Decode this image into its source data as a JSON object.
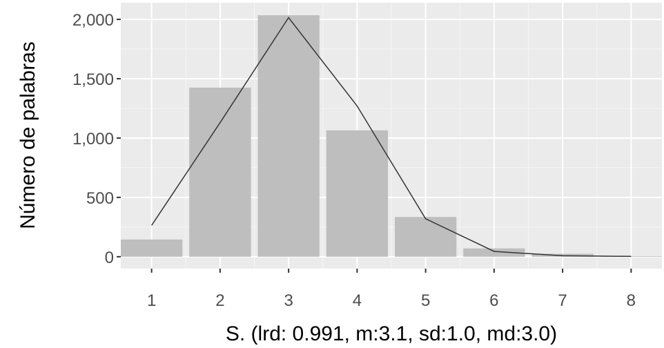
{
  "chart_data": {
    "type": "bar",
    "title": "",
    "xlabel": "S. (lrd: 0.991, m:3.1, sd:1.0, md:3.0)",
    "ylabel": "Número de palabras",
    "categories": [
      "1",
      "2",
      "3",
      "4",
      "5",
      "6",
      "7",
      "8"
    ],
    "x": [
      1,
      2,
      3,
      4,
      5,
      6,
      7,
      8
    ],
    "values": [
      145,
      1425,
      2035,
      1065,
      335,
      70,
      25,
      5
    ],
    "line": {
      "x": [
        1,
        2,
        3,
        4,
        5,
        6,
        7,
        8
      ],
      "y": [
        265,
        1130,
        2015,
        1270,
        320,
        45,
        8,
        3
      ]
    },
    "y_ticks": [
      0,
      500,
      1000,
      1500,
      2000
    ],
    "y_tick_labels": [
      "0",
      "500",
      "1,000",
      "1,500",
      "2,000"
    ],
    "xlim": [
      0.55,
      8.45
    ],
    "ylim": [
      -100,
      2140
    ],
    "grid": true,
    "colors": {
      "panel": "#ebebeb",
      "grid_major": "#ffffff",
      "grid_minor": "#f5f5f5",
      "bar": "#bebebe",
      "line": "#333333",
      "tick": "#333333"
    }
  }
}
